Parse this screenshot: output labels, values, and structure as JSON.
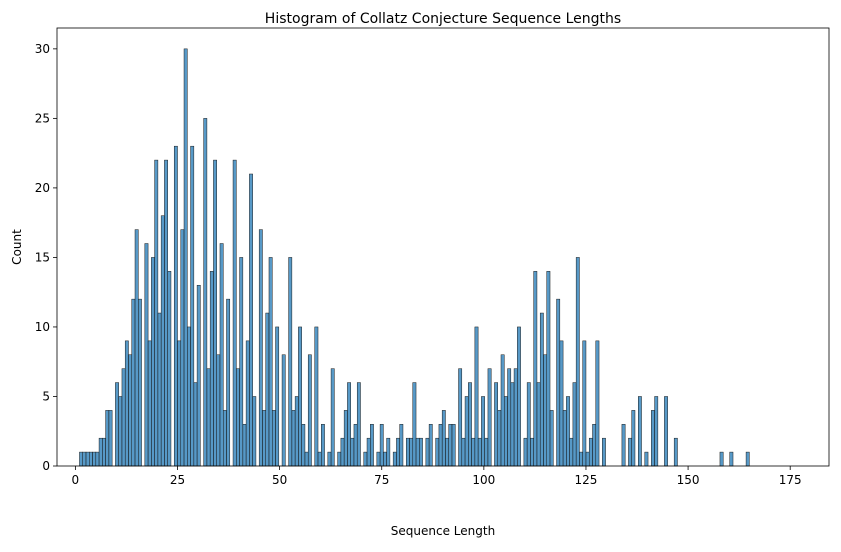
{
  "chart_data": {
    "type": "bar",
    "title": "Histogram of Collatz Conjecture Sequence Lengths",
    "xlabel": "Sequence Length",
    "ylabel": "Count",
    "xlim": [
      -4.5,
      184.5
    ],
    "ylim": [
      0,
      31.5
    ],
    "xticks": [
      0,
      25,
      50,
      75,
      100,
      125,
      150,
      175
    ],
    "yticks": [
      0,
      5,
      10,
      15,
      20,
      25,
      30
    ],
    "grid": false,
    "bin_start": 1,
    "bin_width": 0.8,
    "bar_color": "#1f77b4",
    "bar_edge_color": "#1a1a1a",
    "values": [
      1,
      1,
      1,
      1,
      1,
      1,
      2,
      2,
      4,
      4,
      0,
      6,
      5,
      7,
      9,
      8,
      12,
      17,
      12,
      0,
      16,
      9,
      15,
      22,
      11,
      18,
      22,
      14,
      0,
      23,
      9,
      17,
      30,
      10,
      23,
      6,
      13,
      0,
      25,
      7,
      14,
      22,
      8,
      16,
      4,
      12,
      0,
      22,
      7,
      15,
      3,
      9,
      21,
      5,
      0,
      17,
      4,
      11,
      15,
      4,
      10,
      0,
      8,
      0,
      15,
      4,
      5,
      10,
      3,
      1,
      8,
      0,
      10,
      1,
      3,
      0,
      1,
      7,
      0,
      1,
      2,
      4,
      6,
      2,
      3,
      6,
      0,
      1,
      2,
      3,
      0,
      1,
      3,
      1,
      2,
      0,
      1,
      2,
      3,
      0,
      2,
      2,
      6,
      2,
      2,
      0,
      2,
      3,
      0,
      2,
      3,
      4,
      2,
      3,
      3,
      0,
      7,
      2,
      5,
      6,
      2,
      10,
      2,
      5,
      2,
      7,
      0,
      6,
      4,
      8,
      5,
      7,
      6,
      7,
      10,
      0,
      2,
      6,
      2,
      14,
      6,
      11,
      8,
      14,
      4,
      0,
      12,
      9,
      4,
      5,
      2,
      6,
      15,
      1,
      9,
      1,
      2,
      3,
      9,
      0,
      2,
      0,
      0,
      0,
      0,
      0,
      3,
      0,
      2,
      4,
      0,
      5,
      0,
      1,
      0,
      4,
      5,
      0,
      0,
      5,
      0,
      0,
      2,
      0,
      0,
      0,
      0,
      0,
      0,
      0,
      0,
      0,
      0,
      0,
      0,
      0,
      1,
      0,
      0,
      1,
      0,
      0,
      0,
      0,
      1
    ]
  }
}
